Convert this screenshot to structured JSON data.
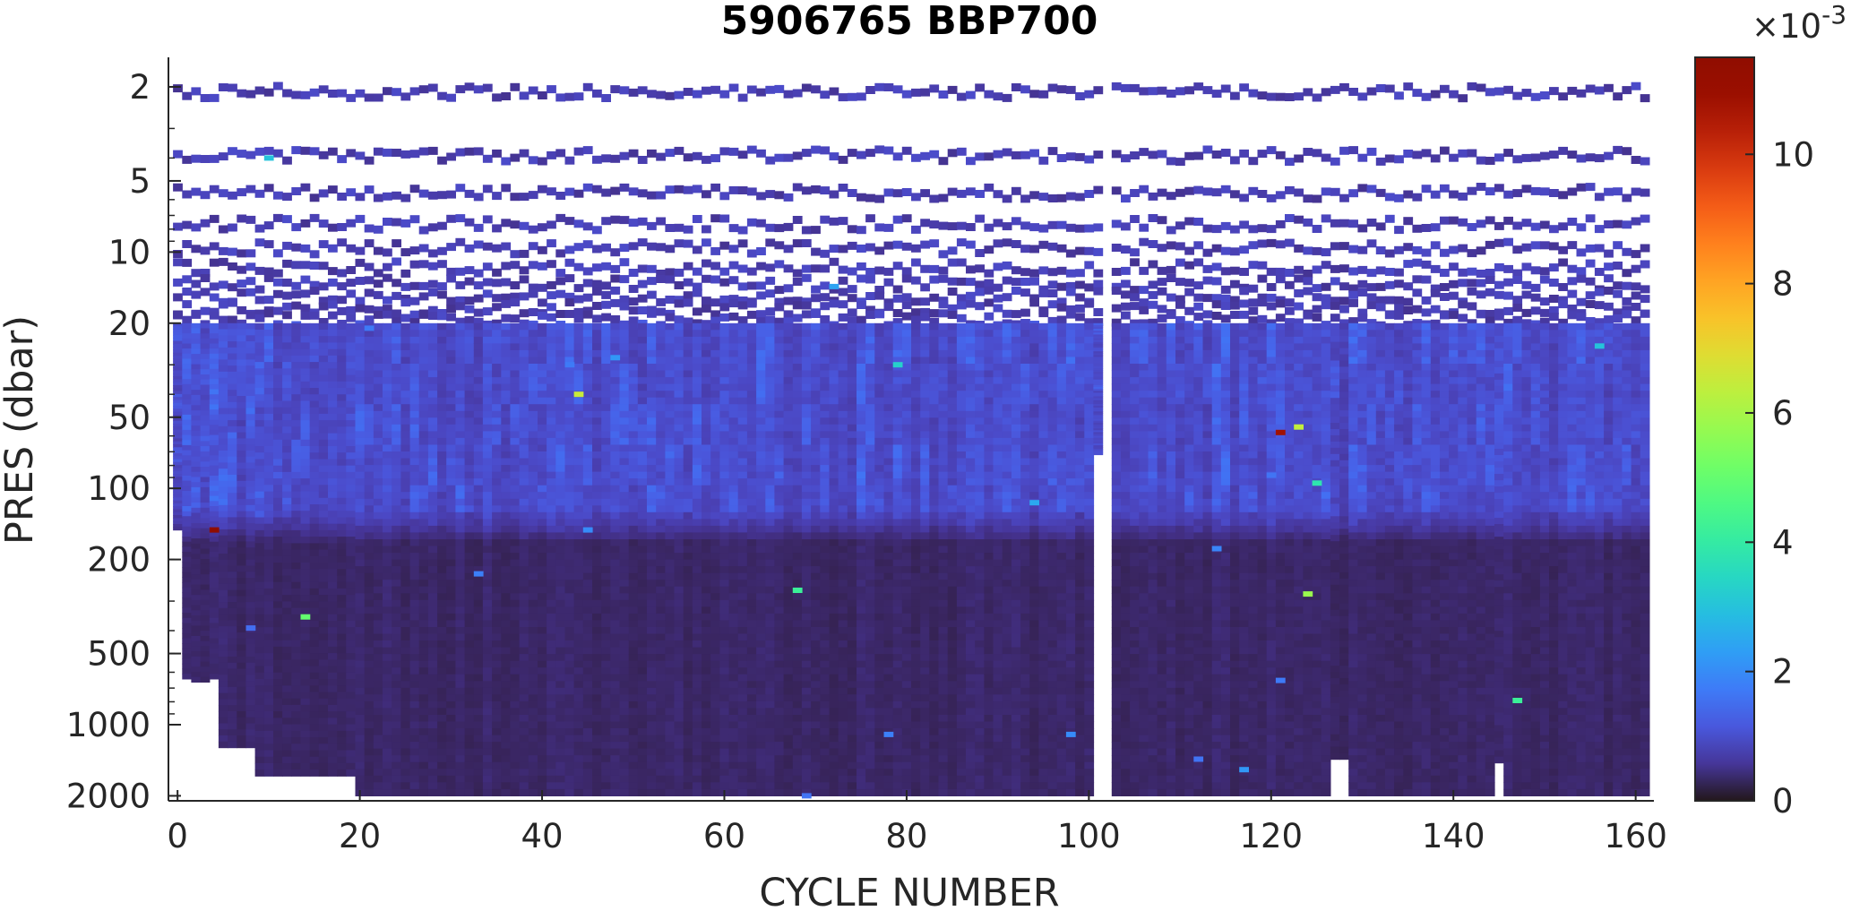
{
  "chart_data": {
    "type": "heatmap",
    "title": "5906765 BBP700",
    "xlabel": "CYCLE NUMBER",
    "ylabel": "PRES (dbar)",
    "xlim": [
      -1,
      162
    ],
    "ylim": [
      1.5,
      2100
    ],
    "y_scale": "log",
    "y_reversed": true,
    "x_ticks": [
      0,
      20,
      40,
      60,
      80,
      100,
      120,
      140,
      160
    ],
    "x_tick_labels": [
      "0",
      "20",
      "40",
      "60",
      "80",
      "100",
      "120",
      "140",
      "160"
    ],
    "y_ticks": [
      2,
      5,
      10,
      20,
      50,
      100,
      200,
      500,
      1000,
      2000
    ],
    "y_tick_labels": [
      "2",
      "5",
      "10",
      "20",
      "50",
      "100",
      "200",
      "500",
      "1000",
      "2000"
    ],
    "colorbar": {
      "colormap": "turbo",
      "range": [
        0,
        0.0115
      ],
      "ticks": [
        0,
        0.002,
        0.004,
        0.006,
        0.008,
        0.01
      ],
      "tick_labels": [
        "0",
        "2",
        "4",
        "6",
        "8",
        "10"
      ],
      "multiplier_label": "×10",
      "multiplier_exponent": "-3"
    },
    "cycles": {
      "first": 0,
      "last": 161
    },
    "missing_cycles": [
      102
    ],
    "surface_sample_levels_dbar": [
      2.1,
      3.9,
      5.6,
      7.6,
      9.6,
      11.6,
      13.6,
      15.4,
      17.3,
      19.2
    ],
    "continuous_from_dbar": 20,
    "typical_values": {
      "surface_layer_0_20": 0.0007,
      "mixed_layer_20_120": 0.0009,
      "deep_below_150": 0.0003
    },
    "profile_max_depth_dbar": [
      {
        "cycles": [
          0,
          0
        ],
        "max_pres": 150
      },
      {
        "cycles": [
          1,
          1
        ],
        "max_pres": 640
      },
      {
        "cycles": [
          2,
          3
        ],
        "max_pres": 660
      },
      {
        "cycles": [
          4,
          4
        ],
        "max_pres": 640
      },
      {
        "cycles": [
          5,
          8
        ],
        "max_pres": 1250
      },
      {
        "cycles": [
          9,
          19
        ],
        "max_pres": 1650
      },
      {
        "cycles": [
          20,
          126
        ],
        "max_pres": 2000
      },
      {
        "cycles": [
          127,
          128
        ],
        "max_pres": 1400
      },
      {
        "cycles": [
          129,
          144
        ],
        "max_pres": 2000
      },
      {
        "cycles": [
          145,
          145
        ],
        "max_pres": 1450
      },
      {
        "cycles": [
          146,
          161
        ],
        "max_pres": 2000
      }
    ],
    "shortened_profiles": [
      {
        "cycle": 101,
        "max_pres": 72
      }
    ],
    "notable_values": [
      {
        "cycle": 4,
        "pres": 150,
        "value": 0.0115
      },
      {
        "cycle": 121,
        "pres": 58,
        "value": 0.0108
      },
      {
        "cycle": 44,
        "pres": 40,
        "value": 0.0065
      },
      {
        "cycle": 123,
        "pres": 55,
        "value": 0.0064
      },
      {
        "cycle": 124,
        "pres": 280,
        "value": 0.0058
      },
      {
        "cycle": 14,
        "pres": 350,
        "value": 0.005
      },
      {
        "cycle": 68,
        "pres": 270,
        "value": 0.0042
      },
      {
        "cycle": 147,
        "pres": 790,
        "value": 0.0042
      },
      {
        "cycle": 125,
        "pres": 95,
        "value": 0.0038
      },
      {
        "cycle": 79,
        "pres": 30,
        "value": 0.0033
      },
      {
        "cycle": 156,
        "pres": 25,
        "value": 0.003
      },
      {
        "cycle": 10,
        "pres": 4.0,
        "value": 0.003
      },
      {
        "cycle": 94,
        "pres": 115,
        "value": 0.0025
      },
      {
        "cycle": 117,
        "pres": 1550,
        "value": 0.0022
      },
      {
        "cycle": 48,
        "pres": 28,
        "value": 0.0022
      },
      {
        "cycle": 72,
        "pres": 14,
        "value": 0.0024
      },
      {
        "cycle": 45,
        "pres": 150,
        "value": 0.002
      },
      {
        "cycle": 98,
        "pres": 1100,
        "value": 0.002
      },
      {
        "cycle": 114,
        "pres": 180,
        "value": 0.0019
      },
      {
        "cycle": 78,
        "pres": 1100,
        "value": 0.0018
      },
      {
        "cycle": 33,
        "pres": 230,
        "value": 0.0018
      },
      {
        "cycle": 121,
        "pres": 650,
        "value": 0.0017
      },
      {
        "cycle": 69,
        "pres": 2000,
        "value": 0.0016
      },
      {
        "cycle": 112,
        "pres": 1400,
        "value": 0.0016
      },
      {
        "cycle": 43,
        "pres": 30,
        "value": 0.0017
      },
      {
        "cycle": 21,
        "pres": 21,
        "value": 0.0017
      },
      {
        "cycle": 8,
        "pres": 390,
        "value": 0.0015
      },
      {
        "cycle": 120,
        "pres": 88,
        "value": 0.0016
      }
    ]
  }
}
